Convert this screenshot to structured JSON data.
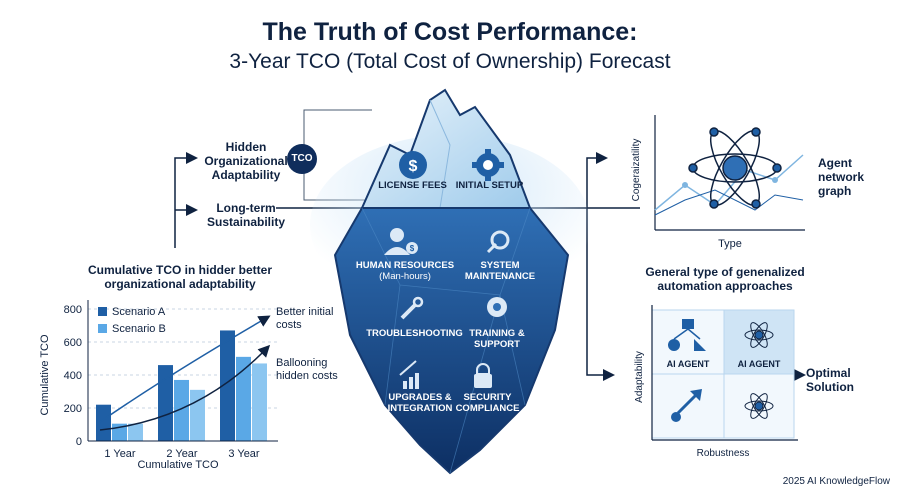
{
  "title": "The Truth of Cost Performance:",
  "subtitle": "3-Year TCO (Total Cost of Ownership) Forecast",
  "left": {
    "hidden_label": "Hidden Organizational Adaptability",
    "tco_badge": "TCO",
    "longterm_label": "Long-term Sustainability",
    "chart_heading": "Cumulative TCO in hidder better organizational adaptability",
    "better_label": "Better initial costs",
    "ballooning_label": "Ballooning hidden costs"
  },
  "iceberg": {
    "license": "LICENSE FEES",
    "initial": "INITIAL SETUP",
    "hr": "HUMAN RESOURCES",
    "hr_sub": "(Man-hours)",
    "maintenance": "SYSTEM MAINTENANCE",
    "troubleshooting": "TROUBLESHOOTING",
    "training": "TRAINING & SUPPORT",
    "upgrades": "UPGRADES & INTEGRATION",
    "security": "SECURITY COMPLIANCE"
  },
  "right": {
    "network_ylabel": "Cogeraizatility",
    "network_xlabel": "Type",
    "network_label": "Agent network graph",
    "approach_heading": "General type of genenalized automation approaches",
    "matrix_ylabel": "Adaptability",
    "matrix_xlabel": "Robustness",
    "ai_agent_1": "AI AGENT",
    "ai_agent_2": "AI AGENT",
    "optimal": "Optimal Solution"
  },
  "footer": "2025 AI KnowledgeFlow",
  "chart_data": {
    "type": "bar",
    "categories": [
      "1 Year",
      "2 Year",
      "3 Year"
    ],
    "series": [
      {
        "name": "Scenario A",
        "values": [
          220,
          460,
          670
        ],
        "color": "#1f5fa5"
      },
      {
        "name": "Scenario B",
        "values": [
          105,
          370,
          510
        ],
        "color": "#5aa8e6"
      },
      {
        "name": "",
        "values": [
          105,
          310,
          470
        ],
        "color": "#8cc6f0"
      }
    ],
    "xlabel": "Cumulative TCO",
    "ylabel": "Cumulative TCO",
    "ylim": [
      0,
      800
    ],
    "yticks": [
      "0",
      "200",
      "400",
      "600",
      "800"
    ],
    "legend": "top-left",
    "grid": true
  }
}
